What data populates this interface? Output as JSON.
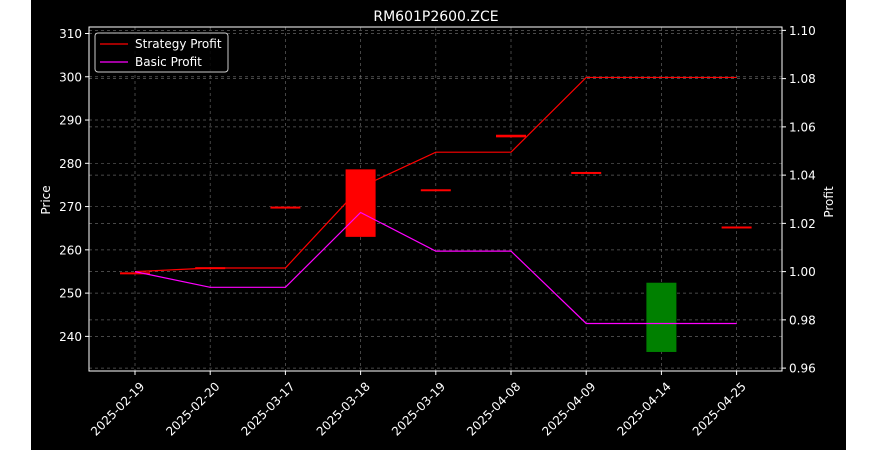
{
  "chart_data": {
    "type": "candlestick",
    "title": "RM601P2600.ZCE",
    "xlabel": "",
    "ylabel": "Price",
    "y2label": "Profit",
    "categories": [
      "2025-02-19",
      "2025-02-20",
      "2025-03-17",
      "2025-03-18",
      "2025-03-19",
      "2025-04-08",
      "2025-04-09",
      "2025-04-14",
      "2025-04-25"
    ],
    "ylim": [
      232,
      311.5
    ],
    "y2lim": [
      0.9588,
      1.1014
    ],
    "yticks": [
      240,
      250,
      260,
      270,
      280,
      290,
      300,
      310
    ],
    "y2ticks": [
      "0.96",
      "0.98",
      "1.00",
      "1.02",
      "1.04",
      "1.06",
      "1.08",
      "1.10"
    ],
    "y2tick_values": [
      0.96,
      0.98,
      1.0,
      1.02,
      1.04,
      1.06,
      1.08,
      1.1
    ],
    "candles": [
      {
        "open": 254.8,
        "close": 254.8,
        "color": "red"
      },
      {
        "open": 256.0,
        "close": 256.0,
        "color": "red"
      },
      {
        "open": 270.0,
        "close": 270.0,
        "color": "red"
      },
      {
        "open": 263.0,
        "close": 278.6,
        "color": "red"
      },
      {
        "open": 274.0,
        "close": 274.0,
        "color": "red"
      },
      {
        "open": 286.0,
        "close": 286.6,
        "color": "red"
      },
      {
        "open": 278.0,
        "close": 278.0,
        "color": "red"
      },
      {
        "open": 252.4,
        "close": 236.4,
        "color": "green"
      },
      {
        "open": 265.4,
        "close": 265.4,
        "color": "red"
      }
    ],
    "series": [
      {
        "name": "Strategy Profit",
        "color": "#ff0000",
        "axis": "right",
        "values": [
          1.0,
          1.0015,
          1.0015,
          1.035,
          1.0495,
          1.0495,
          1.0805,
          1.0805,
          1.0805
        ]
      },
      {
        "name": "Basic Profit",
        "color": "#ff00ff",
        "axis": "right",
        "values": [
          1.0,
          0.9935,
          0.9935,
          1.0245,
          1.0085,
          1.0085,
          0.9785,
          0.9785,
          0.9785
        ]
      }
    ],
    "legend_position": "top-left",
    "grid": true
  }
}
